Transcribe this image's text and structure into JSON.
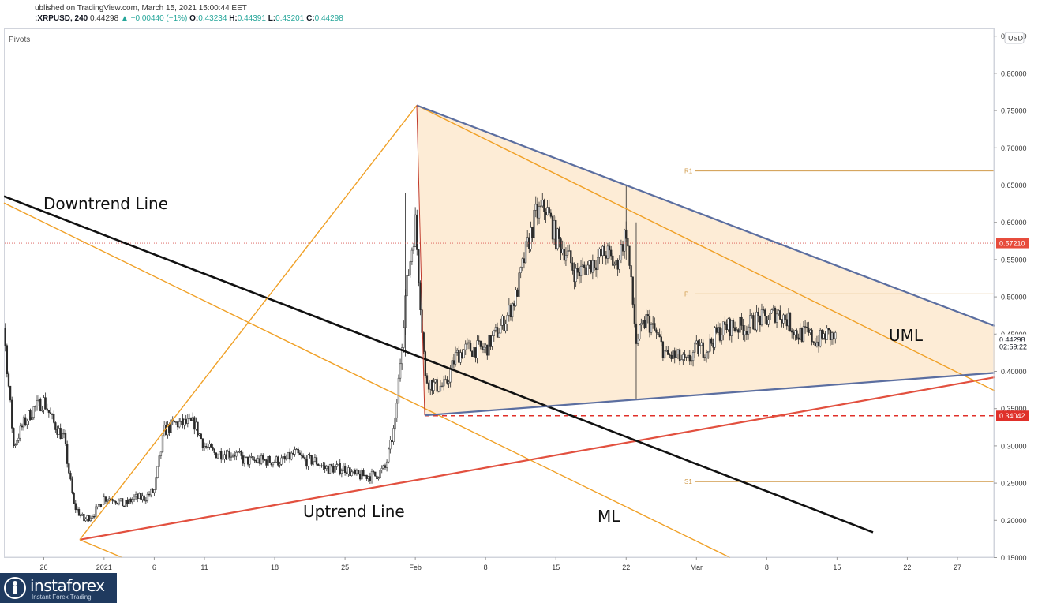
{
  "header": {
    "published": "ublished on TradingView.com, March 15, 2021 15:00:44 EET",
    "symbol": ":XRPUSD, 240",
    "last": "0.44298",
    "change": "▲ +0.00440 (+1%)",
    "o_label": "O:",
    "o": "0.43234",
    "h_label": "H:",
    "h": "0.44391",
    "l_label": "L:",
    "l": "0.43201",
    "c_label": "C:",
    "c": "0.44298"
  },
  "indicator_label": "Pivots",
  "currency": "USD",
  "logo": {
    "brand": "instaforex",
    "tagline": "Instant Forex Trading"
  },
  "colors": {
    "uptrend": "#e2503f",
    "downtrend": "#111111",
    "fork": "#f0a026",
    "wedge": "#5b6ea0",
    "wedge_fill": "#fde9cf",
    "pivot": "#d09a4a",
    "support": "#e0302a",
    "resistance_dot": "#d9534f",
    "candle": "#2a2a2a"
  },
  "chart_data": {
    "type": "candlestick",
    "title": "",
    "ylim": [
      0.15,
      0.85
    ],
    "y_ticks": [
      "0.15000",
      "0.20000",
      "0.25000",
      "0.30000",
      "0.35000",
      "0.40000",
      "0.45000",
      "0.50000",
      "0.55000",
      "0.60000",
      "0.65000",
      "0.70000",
      "0.75000",
      "0.80000",
      "0.85000"
    ],
    "x_ticks": [
      "26",
      "2021",
      "6",
      "11",
      "18",
      "25",
      "Feb",
      "8",
      "15",
      "22",
      "Mar",
      "8",
      "15",
      "22",
      "27"
    ],
    "price_series": [
      [
        "Dec 20",
        0.5
      ],
      [
        "Dec 21",
        0.49
      ],
      [
        "Dec 22",
        0.46
      ],
      [
        "Dec 23",
        0.3
      ],
      [
        "Dec 24",
        0.33
      ],
      [
        "Dec 25",
        0.35
      ],
      [
        "Dec 26",
        0.36
      ],
      [
        "Dec 27",
        0.33
      ],
      [
        "Dec 28",
        0.31
      ],
      [
        "Dec 29",
        0.22
      ],
      [
        "Dec 30",
        0.2
      ],
      [
        "Dec 31",
        0.21
      ],
      [
        "Jan 1",
        0.23
      ],
      [
        "Jan 2",
        0.23
      ],
      [
        "Jan 3",
        0.22
      ],
      [
        "Jan 4",
        0.23
      ],
      [
        "Jan 5",
        0.23
      ],
      [
        "Jan 6",
        0.24
      ],
      [
        "Jan 7",
        0.32
      ],
      [
        "Jan 8",
        0.33
      ],
      [
        "Jan 9",
        0.33
      ],
      [
        "Jan 10",
        0.33
      ],
      [
        "Jan 11",
        0.3
      ],
      [
        "Jan 12",
        0.29
      ],
      [
        "Jan 13",
        0.29
      ],
      [
        "Jan 14",
        0.29
      ],
      [
        "Jan 15",
        0.28
      ],
      [
        "Jan 16",
        0.28
      ],
      [
        "Jan 17",
        0.28
      ],
      [
        "Jan 18",
        0.28
      ],
      [
        "Jan 19",
        0.28
      ],
      [
        "Jan 20",
        0.29
      ],
      [
        "Jan 21",
        0.28
      ],
      [
        "Jan 22",
        0.28
      ],
      [
        "Jan 23",
        0.27
      ],
      [
        "Jan 24",
        0.27
      ],
      [
        "Jan 25",
        0.27
      ],
      [
        "Jan 26",
        0.26
      ],
      [
        "Jan 27",
        0.26
      ],
      [
        "Jan 28",
        0.26
      ],
      [
        "Jan 29",
        0.27
      ],
      [
        "Jan 30",
        0.33
      ],
      [
        "Jan 31",
        0.5
      ],
      [
        "Feb 1",
        0.6
      ],
      [
        "Feb 2",
        0.39
      ],
      [
        "Feb 3",
        0.38
      ],
      [
        "Feb 4",
        0.38
      ],
      [
        "Feb 5",
        0.42
      ],
      [
        "Feb 6",
        0.43
      ],
      [
        "Feb 7",
        0.43
      ],
      [
        "Feb 8",
        0.43
      ],
      [
        "Feb 9",
        0.45
      ],
      [
        "Feb 10",
        0.47
      ],
      [
        "Feb 11",
        0.5
      ],
      [
        "Feb 12",
        0.56
      ],
      [
        "Feb 13",
        0.61
      ],
      [
        "Feb 14",
        0.62
      ],
      [
        "Feb 15",
        0.58
      ],
      [
        "Feb 16",
        0.56
      ],
      [
        "Feb 17",
        0.53
      ],
      [
        "Feb 18",
        0.54
      ],
      [
        "Feb 19",
        0.55
      ],
      [
        "Feb 20",
        0.56
      ],
      [
        "Feb 21",
        0.54
      ],
      [
        "Feb 22",
        0.59
      ],
      [
        "Feb 23",
        0.44
      ],
      [
        "Feb 24",
        0.47
      ],
      [
        "Feb 25",
        0.45
      ],
      [
        "Feb 26",
        0.42
      ],
      [
        "Feb 27",
        0.42
      ],
      [
        "Feb 28",
        0.41
      ],
      [
        "Mar 1",
        0.43
      ],
      [
        "Mar 2",
        0.43
      ],
      [
        "Mar 3",
        0.45
      ],
      [
        "Mar 4",
        0.46
      ],
      [
        "Mar 5",
        0.46
      ],
      [
        "Mar 6",
        0.46
      ],
      [
        "Mar 7",
        0.47
      ],
      [
        "Mar 8",
        0.47
      ],
      [
        "Mar 9",
        0.48
      ],
      [
        "Mar 10",
        0.47
      ],
      [
        "Mar 11",
        0.45
      ],
      [
        "Mar 12",
        0.45
      ],
      [
        "Mar 13",
        0.44
      ],
      [
        "Mar 14",
        0.45
      ],
      [
        "Mar 15",
        0.443
      ]
    ],
    "pivot_levels": [
      {
        "label": "R1",
        "value": 0.669
      },
      {
        "label": "P",
        "value": 0.504
      },
      {
        "label": "S1",
        "value": 0.252
      }
    ],
    "price_labels": [
      {
        "text": "0.57210",
        "value": 0.5721,
        "style": "dotted"
      },
      {
        "text": "0.44298",
        "value": 0.44298,
        "style": "last"
      },
      {
        "text": "02:59:22",
        "value": 0.4335,
        "style": "countdown"
      },
      {
        "text": "0.34042",
        "value": 0.34042,
        "style": "dashed"
      }
    ],
    "annotations": [
      {
        "text": "Downtrend Line"
      },
      {
        "text": "Uptrend Line"
      },
      {
        "text": "ML"
      },
      {
        "text": "UML"
      }
    ]
  }
}
